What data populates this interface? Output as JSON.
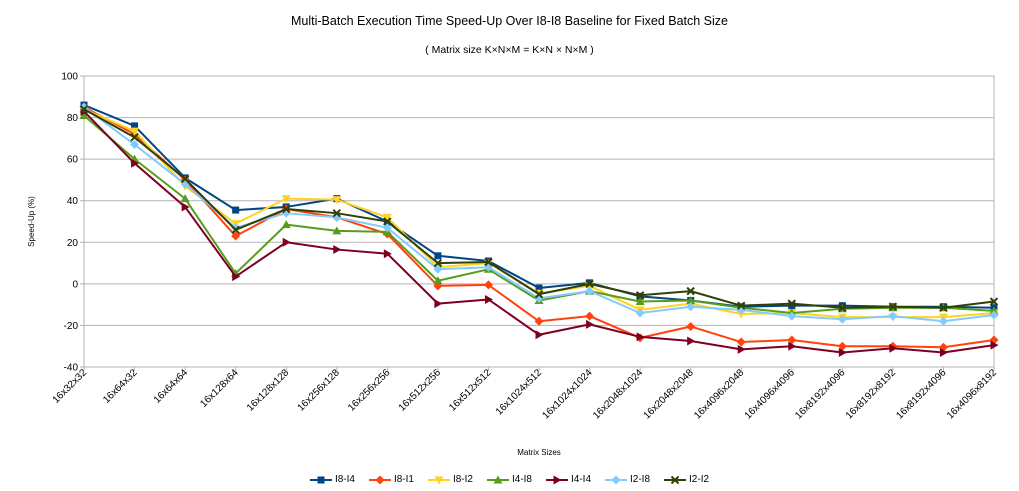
{
  "chart_data": {
    "type": "line",
    "title": "Multi-Batch Execution Time Speed-Up Over I8-I8 Baseline for Fixed Batch Size",
    "subtitle": "( Matrix size K×N×M = K×N × N×M )",
    "xlabel": "Matrix Sizes",
    "ylabel": "Speed-Up (%)",
    "ylim": [
      -40,
      100
    ],
    "yticks": [
      -40,
      -20,
      0,
      20,
      40,
      60,
      80,
      100
    ],
    "grid": true,
    "legend_position": "bottom",
    "categories": [
      "16x32x32",
      "16x64x32",
      "16x64x64",
      "16x128x64",
      "16x128x128",
      "16x256x128",
      "16x256x256",
      "16x512x256",
      "16x512x512",
      "16x1024x512",
      "16x1024x1024",
      "16x2048x1024",
      "16x2048x2048",
      "16x4096x2048",
      "16x4096x4096",
      "16x8192x4096",
      "16x8192x8192",
      "16x8192x4096",
      "16x4096x8192"
    ],
    "series": [
      {
        "name": "I8-I4",
        "color": "#004586",
        "marker": "square",
        "values": [
          86,
          76,
          51,
          35.5,
          37,
          41,
          30,
          13.5,
          11,
          -2,
          0.5,
          -6,
          -8,
          -11,
          -10.5,
          -10.5,
          -11,
          -11,
          -11.5
        ]
      },
      {
        "name": "I8-I1",
        "color": "#ff420e",
        "marker": "diamond",
        "values": [
          85,
          72,
          50,
          23,
          36,
          32,
          24,
          -1,
          -0.5,
          -18,
          -15.5,
          -26,
          -20.5,
          -28,
          -27,
          -30,
          -30,
          -30.5,
          -27
        ]
      },
      {
        "name": "I8-I2",
        "color": "#ffd320",
        "marker": "triangle-down",
        "values": [
          84,
          73.5,
          47,
          29,
          41,
          40.5,
          32,
          8,
          10,
          -4.5,
          -1,
          -12.5,
          -9.5,
          -14.5,
          -14,
          -16,
          -16,
          -16,
          -14
        ]
      },
      {
        "name": "I4-I8",
        "color": "#579d1c",
        "marker": "triangle-up",
        "values": [
          81,
          60,
          41,
          5,
          28.5,
          25.5,
          25,
          1.5,
          7,
          -8,
          -3.5,
          -8.5,
          -8,
          -11.5,
          -14,
          -12,
          -11.5,
          -11.5,
          -13
        ]
      },
      {
        "name": "I4-I4",
        "color": "#7e0021",
        "marker": "triangle-right",
        "values": [
          83,
          58,
          37,
          3.5,
          20,
          16.5,
          14.5,
          -9.5,
          -7.5,
          -24.5,
          -19.5,
          -25.5,
          -27.5,
          -31.5,
          -30,
          -33,
          -31,
          -33,
          -29.5
        ]
      },
      {
        "name": "I2-I8",
        "color": "#83caff",
        "marker": "diamond",
        "values": [
          85,
          67,
          48,
          27,
          34,
          32,
          27,
          7,
          8,
          -7,
          -3.5,
          -14,
          -11,
          -12.5,
          -15.5,
          -17,
          -15.5,
          -18,
          -15
        ]
      },
      {
        "name": "I2-I2",
        "color": "#314004",
        "marker": "x",
        "values": [
          84,
          70.5,
          50.5,
          26,
          36,
          34,
          30,
          10,
          10.5,
          -5,
          0,
          -5.5,
          -3.5,
          -10.5,
          -9.5,
          -11.5,
          -11,
          -11.5,
          -8.5
        ]
      }
    ]
  }
}
